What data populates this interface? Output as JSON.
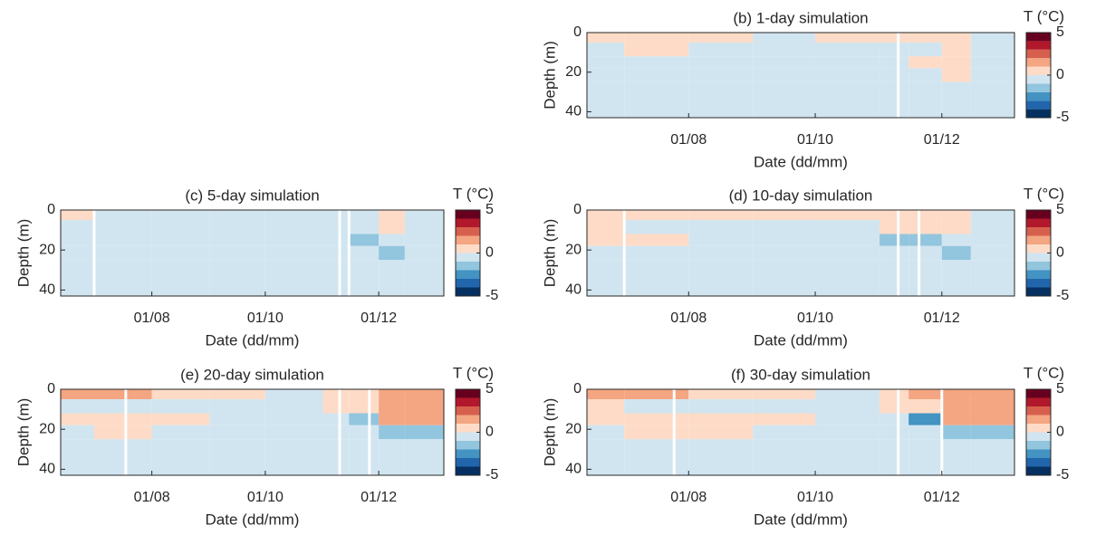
{
  "chart_data": [
    {
      "type": "contour",
      "title": "(b) 1-day simulation",
      "xlabel": "Date (dd/mm)",
      "ylabel": "Depth (m)",
      "colorbar_label": "T (°C)",
      "xlim": [
        "13/06",
        "05/01"
      ],
      "xticks": [
        "01/08",
        "01/10",
        "01/12"
      ],
      "ylim": [
        0,
        43
      ],
      "yticks": [
        0,
        20,
        40
      ],
      "y_reversed": true,
      "x": [
        "13/06",
        "01/07",
        "01/08",
        "01/09",
        "01/10",
        "01/11",
        "15/11",
        "01/12",
        "15/12",
        "05/01"
      ],
      "depths": [
        0,
        5,
        12,
        18,
        25,
        43
      ],
      "z": [
        [
          0.5,
          0.5,
          0.5,
          -0.5,
          0.5,
          0.5,
          0.5,
          0.5,
          -0.5
        ],
        [
          -0.5,
          0.5,
          -0.5,
          -0.5,
          -0.5,
          -0.5,
          -0.5,
          0.5,
          -0.5
        ],
        [
          -0.5,
          -0.5,
          -0.5,
          -0.5,
          -0.5,
          -0.5,
          0.5,
          0.5,
          -0.5
        ],
        [
          -0.5,
          -0.5,
          -0.5,
          -0.5,
          -0.5,
          -0.5,
          -0.5,
          0.5,
          -0.5
        ],
        [
          -0.5,
          -0.5,
          -0.5,
          -0.5,
          -0.5,
          -0.5,
          -0.5,
          -0.5,
          -0.5
        ]
      ],
      "gaps": [
        "10/11"
      ],
      "levels": [
        -5,
        -4,
        -3,
        -2,
        -1,
        0,
        1,
        2,
        3,
        4,
        5
      ],
      "colors": [
        "#053061",
        "#2166ac",
        "#4393c3",
        "#92c5de",
        "#d1e5f0",
        "#fddbc7",
        "#f4a582",
        "#d6604d",
        "#b2182b",
        "#67001f"
      ],
      "cticks": [
        -5,
        0,
        5
      ]
    },
    {
      "type": "contour",
      "title": "(c) 5-day simulation",
      "xlabel": "Date (dd/mm)",
      "ylabel": "Depth (m)",
      "colorbar_label": "T (°C)",
      "xlim": [
        "13/06",
        "05/01"
      ],
      "xticks": [
        "01/08",
        "01/10",
        "01/12"
      ],
      "ylim": [
        0,
        43
      ],
      "yticks": [
        0,
        20,
        40
      ],
      "y_reversed": true,
      "x": [
        "13/06",
        "01/07",
        "01/08",
        "01/09",
        "01/10",
        "01/11",
        "15/11",
        "01/12",
        "15/12",
        "05/01"
      ],
      "depths": [
        0,
        5,
        12,
        18,
        25,
        43
      ],
      "z": [
        [
          0.5,
          -0.5,
          -0.5,
          -0.5,
          -0.5,
          -0.5,
          -0.5,
          0.5,
          -0.5
        ],
        [
          -0.5,
          -0.5,
          -0.5,
          -0.5,
          -0.5,
          -0.5,
          -0.5,
          0.5,
          -0.5
        ],
        [
          -0.5,
          -0.5,
          -0.5,
          -0.5,
          -0.5,
          -0.5,
          -1.5,
          -0.5,
          -0.5
        ],
        [
          -0.5,
          -0.5,
          -0.5,
          -0.5,
          -0.5,
          -0.5,
          -0.5,
          -1.5,
          -0.5
        ],
        [
          -0.5,
          -0.5,
          -0.5,
          -0.5,
          -0.5,
          -0.5,
          -0.5,
          -0.5,
          -0.5
        ]
      ],
      "gaps": [
        "01/07",
        "10/11",
        "15/11"
      ],
      "levels": [
        -5,
        -4,
        -3,
        -2,
        -1,
        0,
        1,
        2,
        3,
        4,
        5
      ],
      "colors": [
        "#053061",
        "#2166ac",
        "#4393c3",
        "#92c5de",
        "#d1e5f0",
        "#fddbc7",
        "#f4a582",
        "#d6604d",
        "#b2182b",
        "#67001f"
      ],
      "cticks": [
        -5,
        0,
        5
      ]
    },
    {
      "type": "contour",
      "title": "(d) 10-day simulation",
      "xlabel": "Date (dd/mm)",
      "ylabel": "Depth (m)",
      "colorbar_label": "T (°C)",
      "xlim": [
        "13/06",
        "05/01"
      ],
      "xticks": [
        "01/08",
        "01/10",
        "01/12"
      ],
      "ylim": [
        0,
        43
      ],
      "yticks": [
        0,
        20,
        40
      ],
      "y_reversed": true,
      "x": [
        "13/06",
        "01/07",
        "01/08",
        "01/09",
        "01/10",
        "01/11",
        "15/11",
        "01/12",
        "15/12",
        "05/01"
      ],
      "depths": [
        0,
        5,
        12,
        18,
        25,
        43
      ],
      "z": [
        [
          0.5,
          0.5,
          0.5,
          0.5,
          0.5,
          0.5,
          0.5,
          0.5,
          -0.5
        ],
        [
          0.5,
          -0.5,
          -0.5,
          -0.5,
          -0.5,
          0.5,
          0.5,
          0.5,
          -0.5
        ],
        [
          0.5,
          0.5,
          -0.5,
          -0.5,
          -0.5,
          -1.5,
          -1.5,
          -0.5,
          -0.5
        ],
        [
          -0.5,
          -0.5,
          -0.5,
          -0.5,
          -0.5,
          -0.5,
          -0.5,
          -1.5,
          -0.5
        ],
        [
          -0.5,
          -0.5,
          -0.5,
          -0.5,
          -0.5,
          -0.5,
          -0.5,
          -0.5,
          -0.5
        ]
      ],
      "gaps": [
        "01/07",
        "10/11",
        "20/11"
      ],
      "levels": [
        -5,
        -4,
        -3,
        -2,
        -1,
        0,
        1,
        2,
        3,
        4,
        5
      ],
      "colors": [
        "#053061",
        "#2166ac",
        "#4393c3",
        "#92c5de",
        "#d1e5f0",
        "#fddbc7",
        "#f4a582",
        "#d6604d",
        "#b2182b",
        "#67001f"
      ],
      "cticks": [
        -5,
        0,
        5
      ]
    },
    {
      "type": "contour",
      "title": "(e) 20-day simulation",
      "xlabel": "Date (dd/mm)",
      "ylabel": "Depth (m)",
      "colorbar_label": "T (°C)",
      "xlim": [
        "13/06",
        "05/01"
      ],
      "xticks": [
        "01/08",
        "01/10",
        "01/12"
      ],
      "ylim": [
        0,
        43
      ],
      "yticks": [
        0,
        20,
        40
      ],
      "y_reversed": true,
      "x": [
        "13/06",
        "01/07",
        "01/08",
        "01/09",
        "01/10",
        "01/11",
        "15/11",
        "01/12",
        "15/12",
        "05/01"
      ],
      "depths": [
        0,
        5,
        12,
        18,
        25,
        43
      ],
      "z": [
        [
          1.5,
          1.5,
          0.5,
          0.5,
          -0.5,
          0.5,
          0.5,
          1.5,
          1.5
        ],
        [
          -0.5,
          -0.5,
          -0.5,
          -0.5,
          -0.5,
          0.5,
          0.5,
          1.5,
          1.5
        ],
        [
          0.5,
          0.5,
          0.5,
          -0.5,
          -0.5,
          -0.5,
          -1.5,
          1.5,
          1.5
        ],
        [
          -0.5,
          0.5,
          -0.5,
          -0.5,
          -0.5,
          -0.5,
          -0.5,
          -1.5,
          -1.5
        ],
        [
          -0.5,
          -0.5,
          -0.5,
          -0.5,
          -0.5,
          -0.5,
          -0.5,
          -0.5,
          -0.5
        ]
      ],
      "gaps": [
        "18/07",
        "10/11",
        "26/11"
      ],
      "levels": [
        -5,
        -4,
        -3,
        -2,
        -1,
        0,
        1,
        2,
        3,
        4,
        5
      ],
      "colors": [
        "#053061",
        "#2166ac",
        "#4393c3",
        "#92c5de",
        "#d1e5f0",
        "#fddbc7",
        "#f4a582",
        "#d6604d",
        "#b2182b",
        "#67001f"
      ],
      "cticks": [
        -5,
        0,
        5
      ]
    },
    {
      "type": "contour",
      "title": "(f) 30-day simulation",
      "xlabel": "Date (dd/mm)",
      "ylabel": "Depth (m)",
      "colorbar_label": "T (°C)",
      "xlim": [
        "13/06",
        "05/01"
      ],
      "xticks": [
        "01/08",
        "01/10",
        "01/12"
      ],
      "ylim": [
        0,
        43
      ],
      "yticks": [
        0,
        20,
        40
      ],
      "y_reversed": true,
      "x": [
        "13/06",
        "01/07",
        "01/08",
        "01/09",
        "01/10",
        "01/11",
        "15/11",
        "01/12",
        "15/12",
        "05/01"
      ],
      "depths": [
        0,
        5,
        12,
        18,
        25,
        43
      ],
      "z": [
        [
          1.5,
          1.5,
          0.5,
          0.5,
          -0.5,
          0.5,
          1.5,
          1.5,
          1.5
        ],
        [
          0.5,
          -0.5,
          -0.5,
          -0.5,
          -0.5,
          0.5,
          0.5,
          1.5,
          1.5
        ],
        [
          0.5,
          0.5,
          0.5,
          0.5,
          -0.5,
          -0.5,
          -2.5,
          1.5,
          1.5
        ],
        [
          -0.5,
          0.5,
          0.5,
          -0.5,
          -0.5,
          -0.5,
          -0.5,
          -1.5,
          -1.5
        ],
        [
          -0.5,
          -0.5,
          -0.5,
          -0.5,
          -0.5,
          -0.5,
          -0.5,
          -0.5,
          -0.5
        ]
      ],
      "gaps": [
        "25/07",
        "10/11",
        "01/12"
      ],
      "levels": [
        -5,
        -4,
        -3,
        -2,
        -1,
        0,
        1,
        2,
        3,
        4,
        5
      ],
      "colors": [
        "#053061",
        "#2166ac",
        "#4393c3",
        "#92c5de",
        "#d1e5f0",
        "#fddbc7",
        "#f4a582",
        "#d6604d",
        "#b2182b",
        "#67001f"
      ],
      "cticks": [
        -5,
        0,
        5
      ]
    }
  ]
}
